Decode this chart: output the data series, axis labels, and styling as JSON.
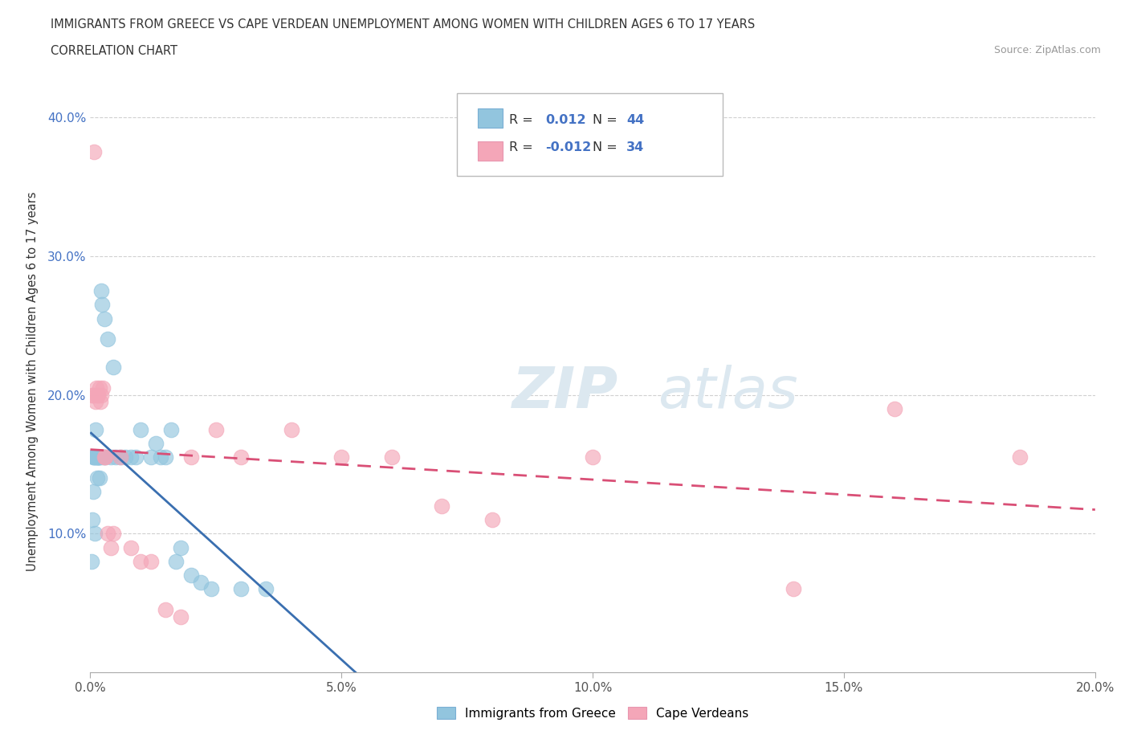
{
  "title_line1": "IMMIGRANTS FROM GREECE VS CAPE VERDEAN UNEMPLOYMENT AMONG WOMEN WITH CHILDREN AGES 6 TO 17 YEARS",
  "title_line2": "CORRELATION CHART",
  "source": "Source: ZipAtlas.com",
  "ylabel": "Unemployment Among Women with Children Ages 6 to 17 years",
  "xlim": [
    0.0,
    0.2
  ],
  "ylim": [
    0.0,
    0.42
  ],
  "xticks": [
    0.0,
    0.05,
    0.1,
    0.15,
    0.2
  ],
  "xtick_labels": [
    "0.0%",
    "5.0%",
    "10.0%",
    "15.0%",
    "20.0%"
  ],
  "yticks": [
    0.0,
    0.1,
    0.2,
    0.3,
    0.4
  ],
  "ytick_labels": [
    "",
    "10.0%",
    "20.0%",
    "30.0%",
    "40.0%"
  ],
  "watermark_zip": "ZIP",
  "watermark_atlas": "atlas",
  "legend_labels": [
    "Immigrants from Greece",
    "Cape Verdeans"
  ],
  "r_greece": "0.012",
  "n_greece": "44",
  "r_cape": "-0.012",
  "n_cape": "34",
  "blue_color": "#92c5de",
  "pink_color": "#f4a6b8",
  "blue_line_color": "#3a6fb0",
  "pink_line_color": "#d94f76",
  "background_color": "#ffffff",
  "grid_color": "#cccccc",
  "greece_x": [
    0.0003,
    0.0004,
    0.0005,
    0.0006,
    0.0007,
    0.0008,
    0.0009,
    0.001,
    0.0011,
    0.0012,
    0.0013,
    0.0014,
    0.0015,
    0.0016,
    0.0017,
    0.0018,
    0.0019,
    0.002,
    0.0022,
    0.0024,
    0.0026,
    0.0028,
    0.003,
    0.0035,
    0.004,
    0.0045,
    0.005,
    0.006,
    0.007,
    0.008,
    0.009,
    0.01,
    0.012,
    0.013,
    0.014,
    0.015,
    0.016,
    0.017,
    0.018,
    0.02,
    0.022,
    0.024,
    0.03,
    0.035
  ],
  "greece_y": [
    0.08,
    0.11,
    0.13,
    0.155,
    0.155,
    0.155,
    0.1,
    0.155,
    0.175,
    0.155,
    0.14,
    0.155,
    0.155,
    0.155,
    0.155,
    0.155,
    0.14,
    0.155,
    0.275,
    0.265,
    0.155,
    0.255,
    0.155,
    0.24,
    0.155,
    0.22,
    0.155,
    0.155,
    0.155,
    0.155,
    0.155,
    0.175,
    0.155,
    0.165,
    0.155,
    0.155,
    0.175,
    0.08,
    0.09,
    0.07,
    0.065,
    0.06,
    0.06,
    0.06
  ],
  "cape_x": [
    0.0004,
    0.0006,
    0.0008,
    0.001,
    0.0012,
    0.0014,
    0.0016,
    0.0018,
    0.002,
    0.0022,
    0.0025,
    0.0028,
    0.003,
    0.0035,
    0.004,
    0.0045,
    0.006,
    0.008,
    0.01,
    0.012,
    0.015,
    0.018,
    0.02,
    0.025,
    0.03,
    0.04,
    0.05,
    0.06,
    0.07,
    0.08,
    0.1,
    0.14,
    0.16,
    0.185
  ],
  "cape_y": [
    0.2,
    0.2,
    0.375,
    0.195,
    0.205,
    0.2,
    0.2,
    0.205,
    0.195,
    0.2,
    0.205,
    0.155,
    0.155,
    0.1,
    0.09,
    0.1,
    0.155,
    0.09,
    0.08,
    0.08,
    0.045,
    0.04,
    0.155,
    0.175,
    0.155,
    0.175,
    0.155,
    0.155,
    0.12,
    0.11,
    0.155,
    0.06,
    0.19,
    0.155
  ]
}
